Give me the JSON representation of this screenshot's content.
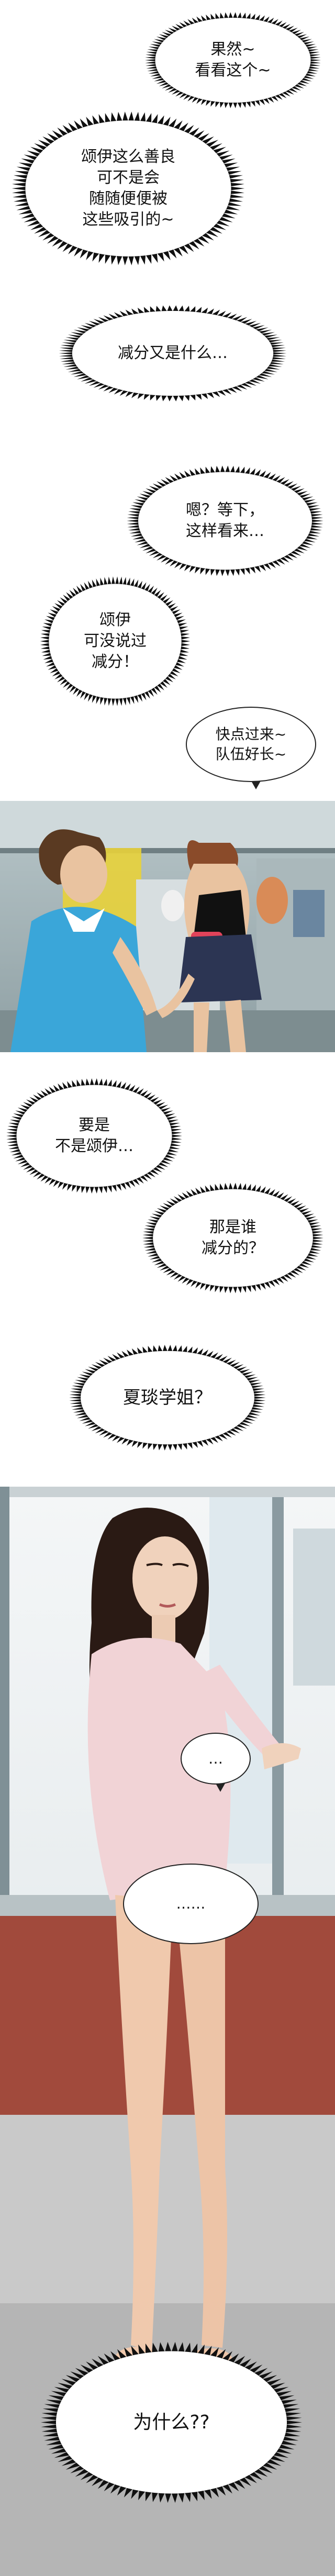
{
  "bubbles": [
    {
      "id": "b1",
      "text": "果然~\n看看这个~"
    },
    {
      "id": "b2",
      "text": "颂伊这么善良\n可不是会\n随随便便被\n这些吸引的~"
    },
    {
      "id": "b3",
      "text": "减分又是什么…"
    },
    {
      "id": "b4",
      "text": "嗯？等下，\n这样看来…"
    },
    {
      "id": "b5",
      "text": "颂伊\n可没说过\n减分！"
    },
    {
      "id": "b6",
      "text": "快点过来~\n队伍好长~"
    },
    {
      "id": "b7",
      "text": "要是\n不是颂伊…"
    },
    {
      "id": "b8",
      "text": "那是谁\n减分的？"
    },
    {
      "id": "b9",
      "text": "夏琰学姐？"
    },
    {
      "id": "b10",
      "text": "…"
    },
    {
      "id": "b11",
      "text": "……"
    },
    {
      "id": "b12",
      "text": "为什么??"
    }
  ],
  "colors": {
    "bubble_fill": "#ffffff",
    "ink": "#111111",
    "shirt_blue": "#3aa6d9",
    "skirt_navy": "#2c3553",
    "blouse_pink": "#f1d3d6",
    "hair_dark": "#2a1a14"
  }
}
